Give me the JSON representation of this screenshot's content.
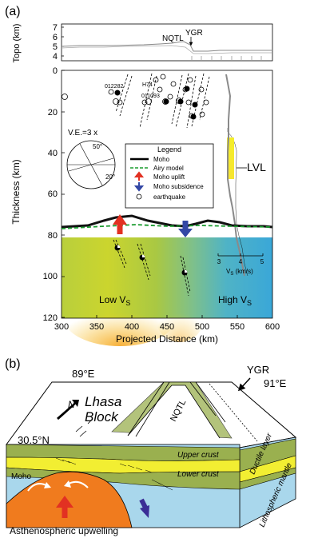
{
  "panel_a": {
    "label": "(a)",
    "topo": {
      "ylabel": "Topo (km)",
      "yticks": [
        "7",
        "6",
        "5",
        "4"
      ],
      "labels": {
        "nqtl": "NQTL",
        "ygr": "YGR"
      }
    },
    "main": {
      "ylabel": "Thickness (km)",
      "xlabel": "Projected Distance (km)",
      "xticks": [
        "300",
        "350",
        "400",
        "450",
        "500",
        "550",
        "600"
      ],
      "yticks": [
        "0",
        "20",
        "40",
        "60",
        "80",
        "100",
        "120"
      ],
      "event_labels": {
        "e1": "012282",
        "e2": "H74",
        "e3": "011093"
      },
      "ve": "V.E.=3 x",
      "angles": {
        "a50": "50°",
        "a20": "20°"
      },
      "lvl": "LVL",
      "low_vs": "Low V",
      "high_vs": "High V",
      "vs_sub": "S",
      "vs_inset": {
        "ticks": [
          "3",
          "4",
          "5"
        ],
        "label": "V",
        "label_sub": "S",
        "unit": " (km/s)"
      }
    },
    "legend": {
      "title": "Legend",
      "items": [
        "Moho",
        "Airy model",
        "Moho uplift",
        "Moho subsidence",
        "earthquake"
      ]
    }
  },
  "panel_b": {
    "label": "(b)",
    "lon_left": "89°E",
    "lon_right": "91°E",
    "lat": "30.5°N",
    "north": "N",
    "block_line1": "Lhasa",
    "block_line2": "Block",
    "nqtl": "NQTL",
    "ygr": "YGR",
    "upper_crust": "Upper crust",
    "lower_crust": "Lower crust",
    "moho": "Moho",
    "ductile": "Ductile layer",
    "mantle": "Lithospheric mantle",
    "asthenosphere": "Asthenospheric upwelling"
  }
}
